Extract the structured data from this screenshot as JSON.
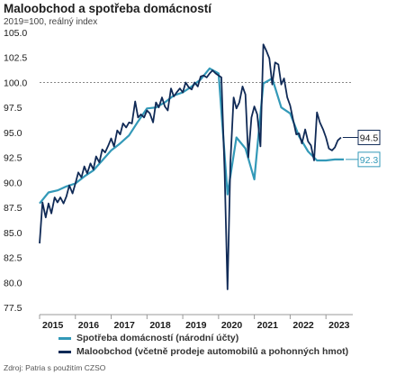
{
  "title": "Maloobchod a spotřeba domácností",
  "subtitle": "2019=100, reálný index",
  "source": "Zdroj: Patria s použitím CZSO",
  "chart_data": {
    "type": "line",
    "ylim": [
      77.5,
      105.0
    ],
    "yticks": [
      "77.5",
      "80.0",
      "82.5",
      "85.0",
      "87.5",
      "90.0",
      "92.5",
      "95.0",
      "97.5",
      "100.0",
      "102.5",
      "105.0"
    ],
    "xlim": [
      2015.0,
      2023.75
    ],
    "xticks": [
      "2015",
      "2016",
      "2017",
      "2018",
      "2019",
      "2020",
      "2021",
      "2022",
      "2023"
    ],
    "reference_line": 100.0,
    "series": [
      {
        "name": "Spotřeba domácností (národní účty)",
        "color": "#3399b8",
        "end_label": "92.3",
        "points": [
          [
            2015.0,
            87.9
          ],
          [
            2015.25,
            89.0
          ],
          [
            2015.5,
            89.2
          ],
          [
            2015.75,
            89.6
          ],
          [
            2016.0,
            89.9
          ],
          [
            2016.25,
            90.6
          ],
          [
            2016.5,
            91.2
          ],
          [
            2016.75,
            92.2
          ],
          [
            2017.0,
            93.2
          ],
          [
            2017.25,
            93.9
          ],
          [
            2017.5,
            94.7
          ],
          [
            2017.75,
            96.1
          ],
          [
            2018.0,
            97.4
          ],
          [
            2018.25,
            97.5
          ],
          [
            2018.5,
            98.0
          ],
          [
            2018.75,
            98.7
          ],
          [
            2019.0,
            99.0
          ],
          [
            2019.25,
            99.6
          ],
          [
            2019.5,
            100.3
          ],
          [
            2019.75,
            101.4
          ],
          [
            2020.0,
            100.9
          ],
          [
            2020.25,
            88.8
          ],
          [
            2020.5,
            94.5
          ],
          [
            2020.75,
            93.4
          ],
          [
            2021.0,
            90.3
          ],
          [
            2021.25,
            99.9
          ],
          [
            2021.5,
            100.4
          ],
          [
            2021.75,
            97.5
          ],
          [
            2022.0,
            96.9
          ],
          [
            2022.25,
            94.6
          ],
          [
            2022.5,
            93.1
          ],
          [
            2022.75,
            92.2
          ],
          [
            2023.0,
            92.2
          ],
          [
            2023.25,
            92.3
          ],
          [
            2023.5,
            92.3
          ]
        ]
      },
      {
        "name": "Maloobchod (včetně prodeje automobilů a pohonných hmot)",
        "color": "#102a56",
        "end_label": "94.5",
        "points": [
          [
            2015.0,
            83.9
          ],
          [
            2015.08,
            88.0
          ],
          [
            2015.17,
            86.5
          ],
          [
            2015.25,
            87.9
          ],
          [
            2015.33,
            86.9
          ],
          [
            2015.42,
            88.5
          ],
          [
            2015.5,
            88.0
          ],
          [
            2015.58,
            88.5
          ],
          [
            2015.67,
            87.9
          ],
          [
            2015.75,
            88.6
          ],
          [
            2015.83,
            89.7
          ],
          [
            2015.92,
            88.9
          ],
          [
            2016.0,
            89.9
          ],
          [
            2016.08,
            91.0
          ],
          [
            2016.17,
            90.5
          ],
          [
            2016.25,
            91.6
          ],
          [
            2016.33,
            90.9
          ],
          [
            2016.42,
            91.9
          ],
          [
            2016.5,
            91.3
          ],
          [
            2016.58,
            92.6
          ],
          [
            2016.67,
            92.0
          ],
          [
            2016.75,
            93.3
          ],
          [
            2016.83,
            93.0
          ],
          [
            2016.92,
            93.7
          ],
          [
            2017.0,
            94.4
          ],
          [
            2017.08,
            93.6
          ],
          [
            2017.17,
            95.2
          ],
          [
            2017.25,
            94.8
          ],
          [
            2017.33,
            95.9
          ],
          [
            2017.42,
            95.5
          ],
          [
            2017.5,
            96.0
          ],
          [
            2017.58,
            95.9
          ],
          [
            2017.67,
            98.1
          ],
          [
            2017.75,
            96.5
          ],
          [
            2017.83,
            96.8
          ],
          [
            2017.92,
            96.5
          ],
          [
            2018.0,
            97.2
          ],
          [
            2018.08,
            96.9
          ],
          [
            2018.17,
            96.0
          ],
          [
            2018.25,
            98.0
          ],
          [
            2018.33,
            97.5
          ],
          [
            2018.42,
            98.5
          ],
          [
            2018.5,
            97.6
          ],
          [
            2018.58,
            97.2
          ],
          [
            2018.67,
            99.4
          ],
          [
            2018.75,
            98.6
          ],
          [
            2018.83,
            99.0
          ],
          [
            2018.92,
            99.4
          ],
          [
            2019.0,
            99.0
          ],
          [
            2019.08,
            100.0
          ],
          [
            2019.17,
            99.5
          ],
          [
            2019.25,
            99.3
          ],
          [
            2019.33,
            100.0
          ],
          [
            2019.42,
            99.6
          ],
          [
            2019.5,
            100.6
          ],
          [
            2019.58,
            100.7
          ],
          [
            2019.67,
            100.5
          ],
          [
            2019.75,
            100.9
          ],
          [
            2019.83,
            101.2
          ],
          [
            2019.92,
            100.9
          ],
          [
            2020.0,
            100.7
          ],
          [
            2020.08,
            100.5
          ],
          [
            2020.17,
            91.0
          ],
          [
            2020.25,
            79.3
          ],
          [
            2020.33,
            92.0
          ],
          [
            2020.42,
            98.5
          ],
          [
            2020.5,
            97.4
          ],
          [
            2020.58,
            98.0
          ],
          [
            2020.67,
            99.6
          ],
          [
            2020.75,
            98.8
          ],
          [
            2020.83,
            92.5
          ],
          [
            2020.92,
            96.5
          ],
          [
            2021.0,
            97.6
          ],
          [
            2021.08,
            96.8
          ],
          [
            2021.17,
            93.6
          ],
          [
            2021.25,
            103.8
          ],
          [
            2021.33,
            103.2
          ],
          [
            2021.42,
            102.4
          ],
          [
            2021.5,
            99.8
          ],
          [
            2021.58,
            102.0
          ],
          [
            2021.67,
            101.8
          ],
          [
            2021.75,
            99.8
          ],
          [
            2021.83,
            100.4
          ],
          [
            2021.92,
            98.5
          ],
          [
            2022.0,
            97.7
          ],
          [
            2022.08,
            96.3
          ],
          [
            2022.17,
            94.8
          ],
          [
            2022.25,
            94.9
          ],
          [
            2022.33,
            93.9
          ],
          [
            2022.42,
            95.3
          ],
          [
            2022.5,
            94.1
          ],
          [
            2022.58,
            93.7
          ],
          [
            2022.67,
            92.2
          ],
          [
            2022.75,
            97.0
          ],
          [
            2022.83,
            96.0
          ],
          [
            2022.92,
            95.3
          ],
          [
            2023.0,
            94.5
          ],
          [
            2023.08,
            93.4
          ],
          [
            2023.17,
            93.2
          ],
          [
            2023.25,
            93.5
          ],
          [
            2023.33,
            94.2
          ],
          [
            2023.42,
            94.5
          ]
        ]
      }
    ]
  }
}
